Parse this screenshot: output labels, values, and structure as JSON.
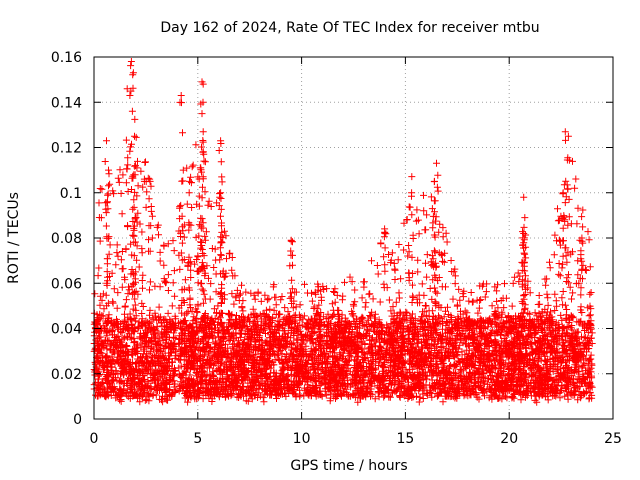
{
  "chart_data": {
    "type": "scatter",
    "title": "Day 162 of 2024, Rate Of TEC Index for receiver mtbu",
    "xlabel": "GPS time / hours",
    "ylabel": "ROTI / TECUs",
    "xlim": [
      0,
      25
    ],
    "ylim": [
      0,
      0.16
    ],
    "xticks": [
      0,
      5,
      10,
      15,
      20,
      25
    ],
    "yticks": [
      0,
      0.02,
      0.04,
      0.06,
      0.08,
      0.1,
      0.12,
      0.14,
      0.16
    ],
    "xtick_labels": [
      "0",
      "5",
      "10",
      "15",
      "20",
      "25"
    ],
    "ytick_labels": [
      "0",
      "0.02",
      "0.04",
      "0.06",
      "0.08",
      "0.1",
      "0.12",
      "0.14",
      "0.16"
    ],
    "grid": true,
    "marker": "+",
    "series_color": "#ff0000",
    "data_range_x": [
      0,
      24
    ],
    "baseline_band": [
      0.01,
      0.045
    ],
    "peaks": [
      {
        "x": 0.6,
        "y": 0.123
      },
      {
        "x": 0.7,
        "y": 0.11
      },
      {
        "x": 1.6,
        "y": 0.146
      },
      {
        "x": 1.8,
        "y": 0.158
      },
      {
        "x": 1.9,
        "y": 0.153
      },
      {
        "x": 1.85,
        "y": 0.136
      },
      {
        "x": 1.95,
        "y": 0.125
      },
      {
        "x": 2.0,
        "y": 0.112
      },
      {
        "x": 2.7,
        "y": 0.105
      },
      {
        "x": 4.2,
        "y": 0.143
      },
      {
        "x": 4.3,
        "y": 0.11
      },
      {
        "x": 4.6,
        "y": 0.105
      },
      {
        "x": 5.0,
        "y": 0.107
      },
      {
        "x": 5.2,
        "y": 0.149
      },
      {
        "x": 5.25,
        "y": 0.14
      },
      {
        "x": 5.2,
        "y": 0.135
      },
      {
        "x": 5.3,
        "y": 0.114
      },
      {
        "x": 6.1,
        "y": 0.123
      },
      {
        "x": 6.15,
        "y": 0.107
      },
      {
        "x": 6.1,
        "y": 0.1
      },
      {
        "x": 9.5,
        "y": 0.079
      },
      {
        "x": 14.0,
        "y": 0.084
      },
      {
        "x": 15.3,
        "y": 0.1
      },
      {
        "x": 16.5,
        "y": 0.113
      },
      {
        "x": 16.4,
        "y": 0.105
      },
      {
        "x": 16.3,
        "y": 0.093
      },
      {
        "x": 20.7,
        "y": 0.098
      },
      {
        "x": 20.75,
        "y": 0.089
      },
      {
        "x": 20.7,
        "y": 0.082
      },
      {
        "x": 22.7,
        "y": 0.127
      },
      {
        "x": 22.85,
        "y": 0.125
      },
      {
        "x": 22.6,
        "y": 0.1
      },
      {
        "x": 23.5,
        "y": 0.08
      }
    ]
  }
}
